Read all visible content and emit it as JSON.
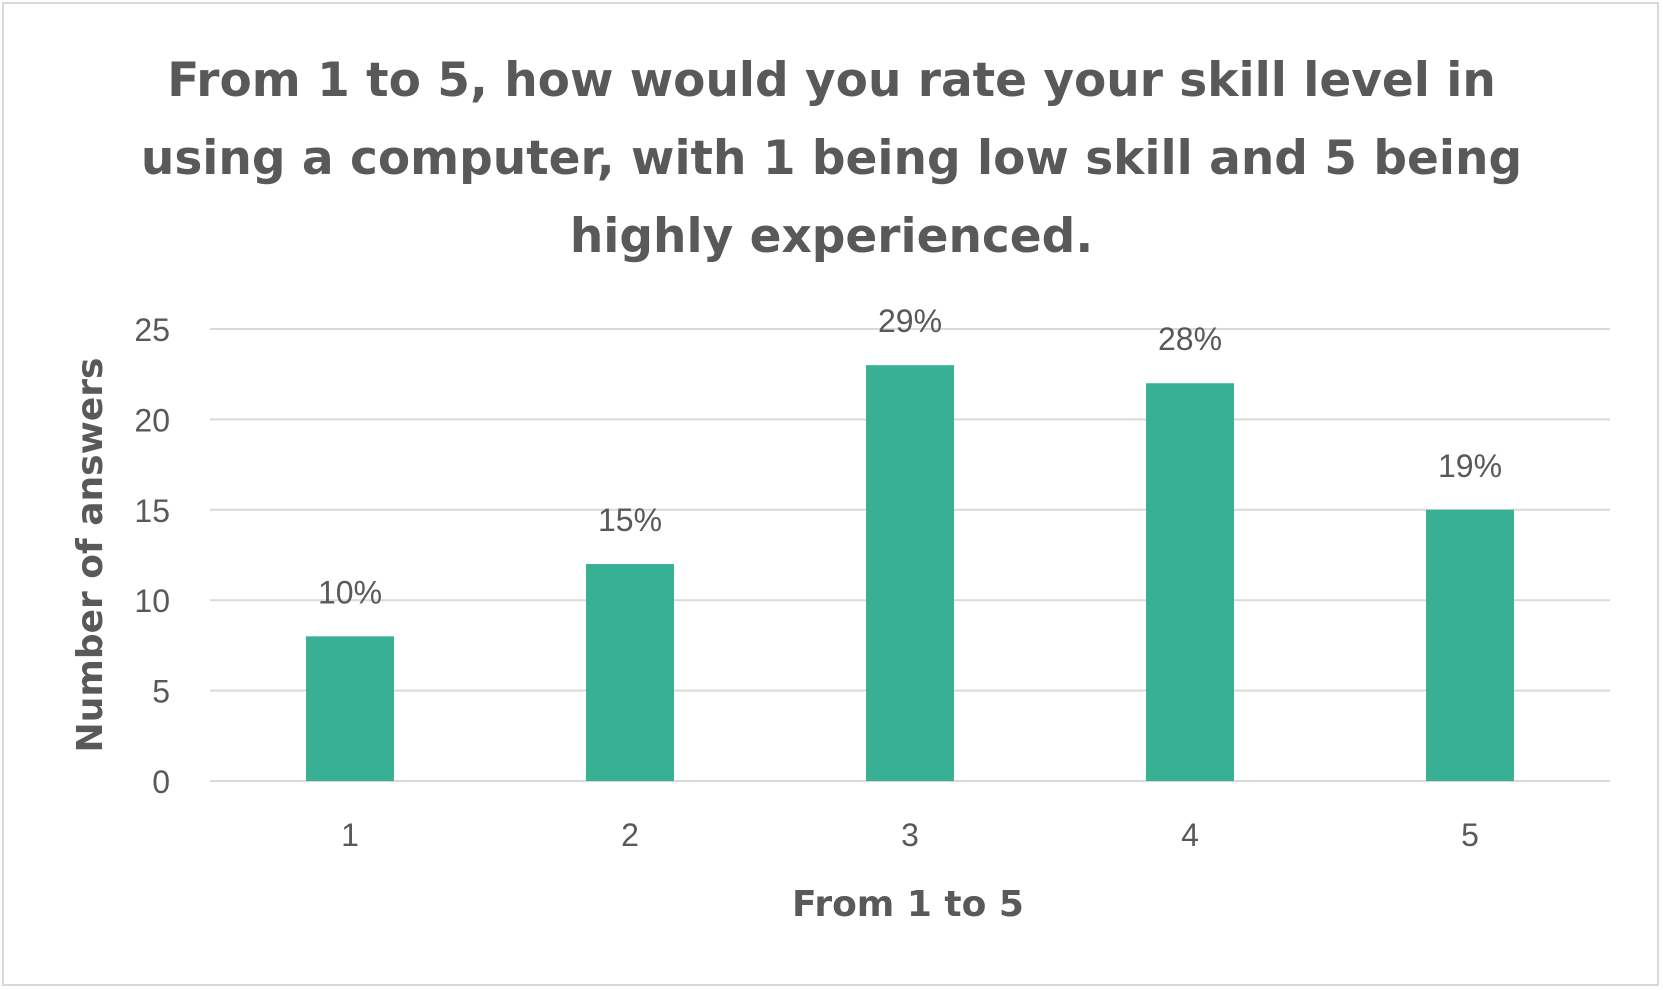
{
  "chart_data": {
    "type": "bar",
    "title": "From 1 to 5, how would you rate your skill level in using a computer, with 1 being low skill and 5 being highly experienced.",
    "xlabel": "From 1 to 5",
    "ylabel": "Number of answers",
    "categories": [
      "1",
      "2",
      "3",
      "4",
      "5"
    ],
    "values": [
      8,
      12,
      23,
      22,
      15
    ],
    "data_labels": [
      "10%",
      "15%",
      "29%",
      "28%",
      "19%"
    ],
    "ylim": [
      0,
      25
    ],
    "yticks": [
      0,
      5,
      10,
      15,
      20,
      25
    ],
    "grid": true,
    "legend": "none",
    "bar_color": "#38b094",
    "gridline_color": "#d9d9d9",
    "text_color": "#595959"
  }
}
